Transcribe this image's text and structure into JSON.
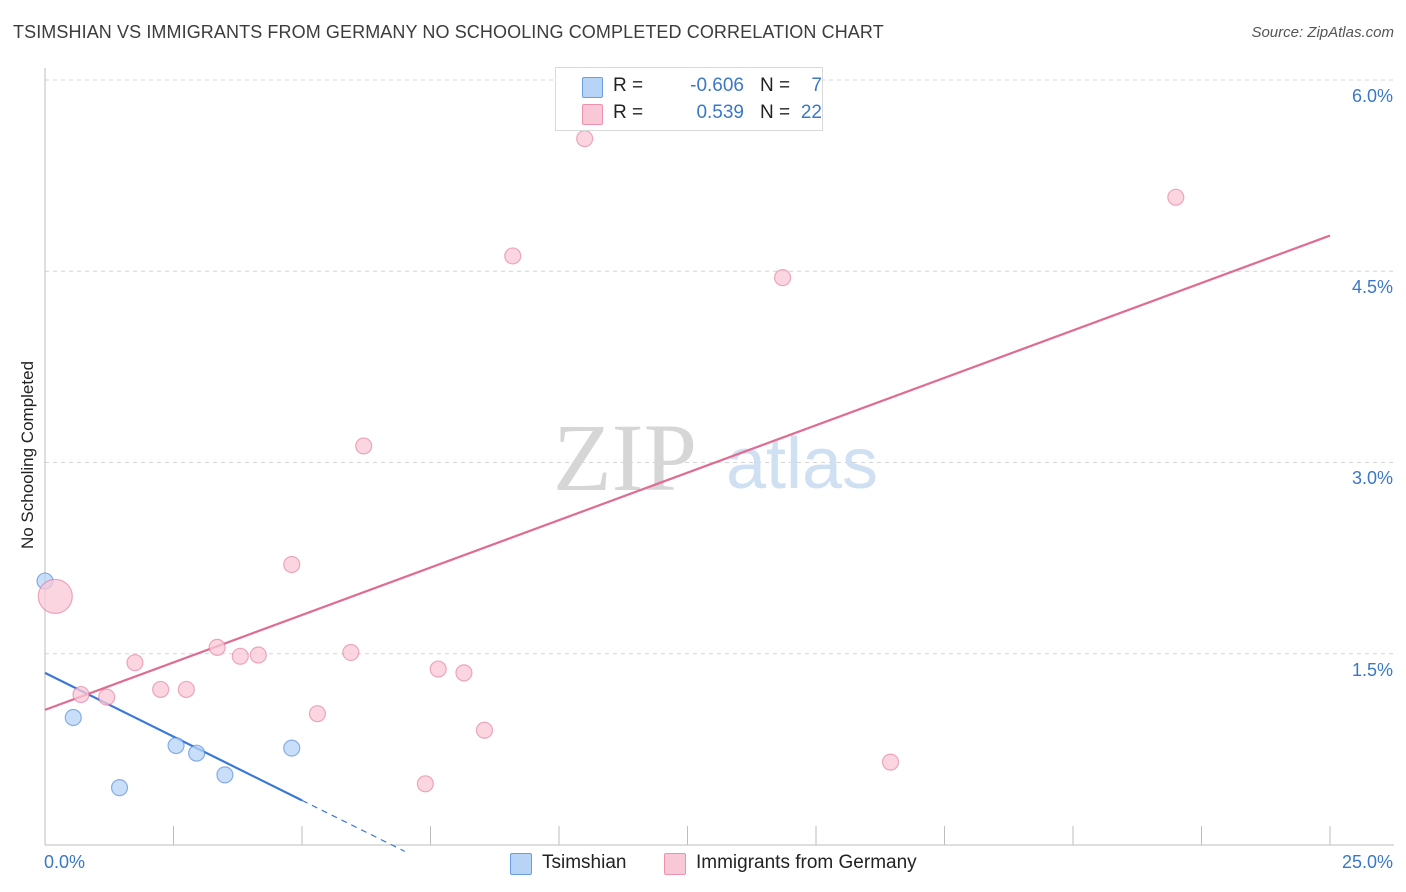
{
  "title": "TSIMSHIAN VS IMMIGRANTS FROM GERMANY NO SCHOOLING COMPLETED CORRELATION CHART",
  "source": "Source: ZipAtlas.com",
  "watermark": {
    "zip": "ZIP",
    "atlas": "atlas"
  },
  "legend_top": {
    "rows": [
      {
        "r_label": "R =",
        "r_value": "-0.606",
        "n_label": "N =",
        "n_value": "7",
        "color": "#b7d3f5"
      },
      {
        "r_label": "R =",
        "r_value": "0.539",
        "n_label": "N =",
        "n_value": "22",
        "color": "#f9c8d6"
      }
    ]
  },
  "legend_bottom": {
    "items": [
      {
        "label": "Tsimshian",
        "color": "#b7d3f5"
      },
      {
        "label": "Immigrants from Germany",
        "color": "#f9c8d6"
      }
    ]
  },
  "chart_data": {
    "type": "scatter",
    "title": "TSIMSHIAN VS IMMIGRANTS FROM GERMANY NO SCHOOLING COMPLETED CORRELATION CHART",
    "xlabel": "",
    "ylabel": "No Schooling Completed",
    "xlim": [
      0,
      25
    ],
    "ylim": [
      0,
      6.2
    ],
    "x_tick_labels": {
      "min": "0.0%",
      "max": "25.0%"
    },
    "y_ticks": [
      {
        "value": 1.5,
        "label": "1.5%"
      },
      {
        "value": 3.0,
        "label": "3.0%"
      },
      {
        "value": 4.5,
        "label": "4.5%"
      },
      {
        "value": 6.0,
        "label": "6.0%"
      }
    ],
    "x_minor_ticks": [
      2.5,
      5.0,
      7.5,
      10.0,
      12.5,
      15.0,
      17.5,
      20.0,
      22.5,
      25.0
    ],
    "series": [
      {
        "name": "Tsimshian",
        "color": "#3a78d6",
        "fill": "#b7d3f5",
        "points": [
          {
            "x": 0.0,
            "y": 2.07
          },
          {
            "x": 0.55,
            "y": 1.0
          },
          {
            "x": 1.45,
            "y": 0.45
          },
          {
            "x": 2.55,
            "y": 0.78
          },
          {
            "x": 2.95,
            "y": 0.72
          },
          {
            "x": 3.5,
            "y": 0.55
          },
          {
            "x": 4.8,
            "y": 0.76
          }
        ],
        "trend": {
          "x0": 0.0,
          "y0": 1.35,
          "x1": 5.0,
          "y1": 0.35,
          "dash_to_x": 7.0,
          "dash_to_y": -0.05
        }
      },
      {
        "name": "Immigrants from Germany",
        "color": "#e06b93",
        "fill": "#f9c8d6",
        "points": [
          {
            "x": 0.2,
            "y": 1.95,
            "large": true
          },
          {
            "x": 0.7,
            "y": 1.18
          },
          {
            "x": 1.2,
            "y": 1.16
          },
          {
            "x": 1.75,
            "y": 1.43
          },
          {
            "x": 2.25,
            "y": 1.22
          },
          {
            "x": 2.75,
            "y": 1.22
          },
          {
            "x": 3.35,
            "y": 1.55
          },
          {
            "x": 3.8,
            "y": 1.48
          },
          {
            "x": 4.15,
            "y": 1.49
          },
          {
            "x": 4.8,
            "y": 2.2
          },
          {
            "x": 5.3,
            "y": 1.03
          },
          {
            "x": 5.95,
            "y": 1.51
          },
          {
            "x": 6.2,
            "y": 3.13
          },
          {
            "x": 7.4,
            "y": 0.48
          },
          {
            "x": 7.65,
            "y": 1.38
          },
          {
            "x": 8.15,
            "y": 1.35
          },
          {
            "x": 8.55,
            "y": 0.9
          },
          {
            "x": 9.1,
            "y": 4.62
          },
          {
            "x": 10.5,
            "y": 5.54
          },
          {
            "x": 14.35,
            "y": 4.45
          },
          {
            "x": 16.45,
            "y": 0.65
          },
          {
            "x": 22.0,
            "y": 5.08
          }
        ],
        "trend": {
          "x0": 0.0,
          "y0": 1.06,
          "x1": 25.0,
          "y1": 4.78
        }
      }
    ]
  }
}
